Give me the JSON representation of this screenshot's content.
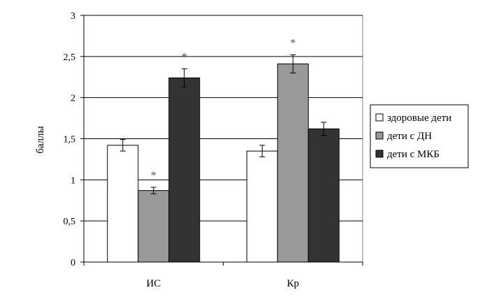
{
  "chart_data": {
    "type": "bar",
    "title": "",
    "xlabel": "",
    "ylabel": "баллы",
    "ylim": [
      0,
      3
    ],
    "yticks": [
      0,
      0.5,
      1,
      1.5,
      2,
      2.5,
      3
    ],
    "ytick_labels": [
      "0",
      "0,5",
      "1",
      "1,5",
      "2",
      "2,5",
      "3"
    ],
    "grid": true,
    "legend_position": "right",
    "categories": [
      "ИС",
      "Кр"
    ],
    "series": [
      {
        "name": "здоровые дети",
        "color": "#ffffff",
        "values": [
          1.42,
          1.35
        ],
        "errors": [
          0.07,
          0.07
        ],
        "markers": [
          "",
          ""
        ]
      },
      {
        "name": "дети с ДН",
        "color": "#999999",
        "values": [
          0.87,
          2.41
        ],
        "errors": [
          0.04,
          0.11
        ],
        "markers": [
          "*",
          "*"
        ]
      },
      {
        "name": "дети с МКБ",
        "color": "#333333",
        "values": [
          2.24,
          1.62
        ],
        "errors": [
          0.11,
          0.08
        ],
        "markers": [
          "*",
          ""
        ]
      }
    ]
  }
}
